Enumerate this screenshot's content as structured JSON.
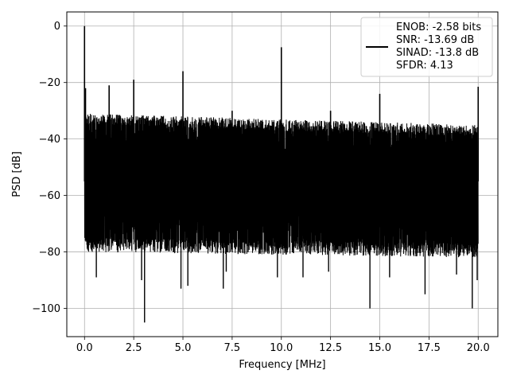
{
  "chart_data": {
    "type": "line",
    "title": "",
    "xlabel": "Frequency [MHz]",
    "ylabel": "PSD [dB]",
    "xlim": [
      -0.9,
      21.0
    ],
    "ylim": [
      -110,
      5
    ],
    "x_ticks": [
      0.0,
      2.5,
      5.0,
      7.5,
      10.0,
      12.5,
      15.0,
      17.5,
      20.0
    ],
    "x_tick_labels": [
      "0.0",
      "2.5",
      "5.0",
      "7.5",
      "10.0",
      "12.5",
      "15.0",
      "17.5",
      "20.0"
    ],
    "y_ticks": [
      0,
      -20,
      -40,
      -60,
      -80,
      -100
    ],
    "y_tick_labels": [
      "0",
      "−20",
      "−40",
      "−60",
      "−80",
      "−100"
    ],
    "grid": true,
    "legend_position": "top-right",
    "series": [
      {
        "name": "ENOB: -2.58 bits\nSNR: -13.69 dB\nSINAD: -13.8 dB\nSFDR: 4.13",
        "name_lines": [
          "ENOB: -2.58 bits",
          "SNR: -13.69 dB",
          "SINAD: -13.8 dB",
          "SFDR: 4.13"
        ],
        "color": "#000000",
        "noise_band": {
          "x_range": [
            0.0,
            20.0
          ],
          "upper_envelope_db": [
            -31,
            -35
          ],
          "lower_envelope_db": [
            -80,
            -82
          ],
          "median_db": -55
        },
        "spurs": [
          {
            "x": 0.0,
            "y": 0
          },
          {
            "x": 0.05,
            "y": -22
          },
          {
            "x": 1.25,
            "y": -21
          },
          {
            "x": 2.5,
            "y": -19
          },
          {
            "x": 5.0,
            "y": -16
          },
          {
            "x": 7.5,
            "y": -30
          },
          {
            "x": 10.0,
            "y": -7.5
          },
          {
            "x": 12.5,
            "y": -30
          },
          {
            "x": 15.0,
            "y": -24
          },
          {
            "x": 20.0,
            "y": -21.5
          }
        ],
        "notches": [
          {
            "x": 0.6,
            "y": -89
          },
          {
            "x": 2.9,
            "y": -90
          },
          {
            "x": 3.05,
            "y": -105
          },
          {
            "x": 4.9,
            "y": -93
          },
          {
            "x": 5.25,
            "y": -92
          },
          {
            "x": 7.2,
            "y": -87
          },
          {
            "x": 7.05,
            "y": -93
          },
          {
            "x": 9.8,
            "y": -89
          },
          {
            "x": 11.1,
            "y": -89
          },
          {
            "x": 12.4,
            "y": -87
          },
          {
            "x": 14.5,
            "y": -100
          },
          {
            "x": 15.5,
            "y": -89
          },
          {
            "x": 17.3,
            "y": -95
          },
          {
            "x": 18.9,
            "y": -88
          },
          {
            "x": 19.7,
            "y": -100
          },
          {
            "x": 19.95,
            "y": -90
          }
        ]
      }
    ]
  }
}
